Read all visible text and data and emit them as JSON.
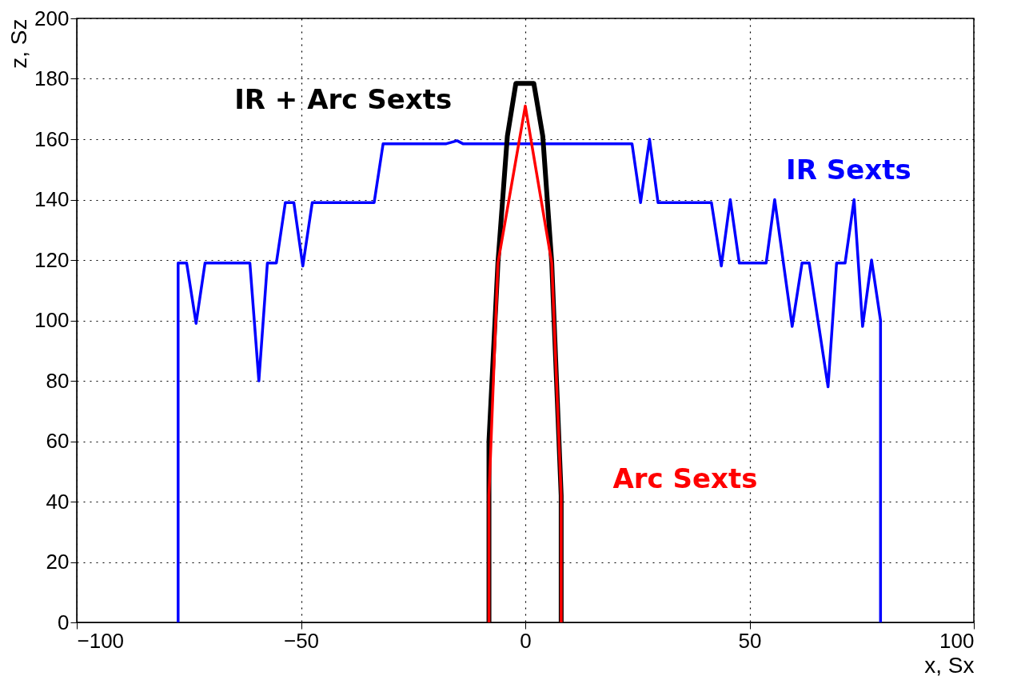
{
  "chart_data": {
    "type": "line",
    "xlabel": "x, Sx",
    "ylabel": "z, Sz",
    "xlim": [
      -100,
      100
    ],
    "xticks": [
      -100,
      -50,
      0,
      50,
      100
    ],
    "ylim": [
      0,
      200
    ],
    "yticks": [
      0,
      20,
      40,
      60,
      80,
      100,
      120,
      140,
      160,
      180,
      200
    ],
    "grid": true,
    "legend": false,
    "line_style": "solid",
    "marker": "none",
    "series": [
      {
        "name": "IR Sexts",
        "color": "#0000ff",
        "x": [
          -77.4,
          -77.4,
          -75.5,
          -73.4,
          -71.4,
          -61.4,
          -59.4,
          -57.5,
          -55.5,
          -53.5,
          -51.6,
          -49.6,
          -47.5,
          -33.7,
          -31.7,
          -17.6,
          -15.2,
          -13.9,
          23.8,
          25.7,
          27.7,
          29.6,
          41.5,
          43.7,
          45.7,
          47.7,
          53.7,
          55.6,
          59.5,
          61.7,
          63.3,
          67.5,
          69.4,
          71.3,
          73.3,
          75.2,
          77.2,
          79.2,
          79.2
        ],
        "values": [
          0,
          119,
          119,
          99,
          119,
          119,
          80,
          119,
          119,
          139,
          139,
          118,
          139,
          139,
          158.5,
          158.5,
          159.5,
          158.5,
          158.5,
          139,
          160,
          139,
          139,
          118,
          140,
          119,
          119,
          140,
          98,
          119,
          119,
          78,
          119,
          119,
          140,
          98,
          120,
          100,
          0
        ]
      },
      {
        "name": "IR + Arc Sexts",
        "color": "#000000",
        "x": [
          -8.1,
          -8.1,
          -6.1,
          -4.0,
          -2.1,
          1.9,
          3.9,
          5.9,
          8.0,
          8.0
        ],
        "values": [
          0,
          60,
          119,
          161,
          178.5,
          178.5,
          161,
          119,
          42,
          0
        ]
      },
      {
        "name": "Arc Sexts",
        "color": "#ff0000",
        "x": [
          -8.1,
          -8.1,
          -6.1,
          0,
          5.9,
          8.0,
          8.0
        ],
        "values": [
          0,
          42,
          119,
          171,
          119,
          42,
          0
        ]
      }
    ]
  }
}
